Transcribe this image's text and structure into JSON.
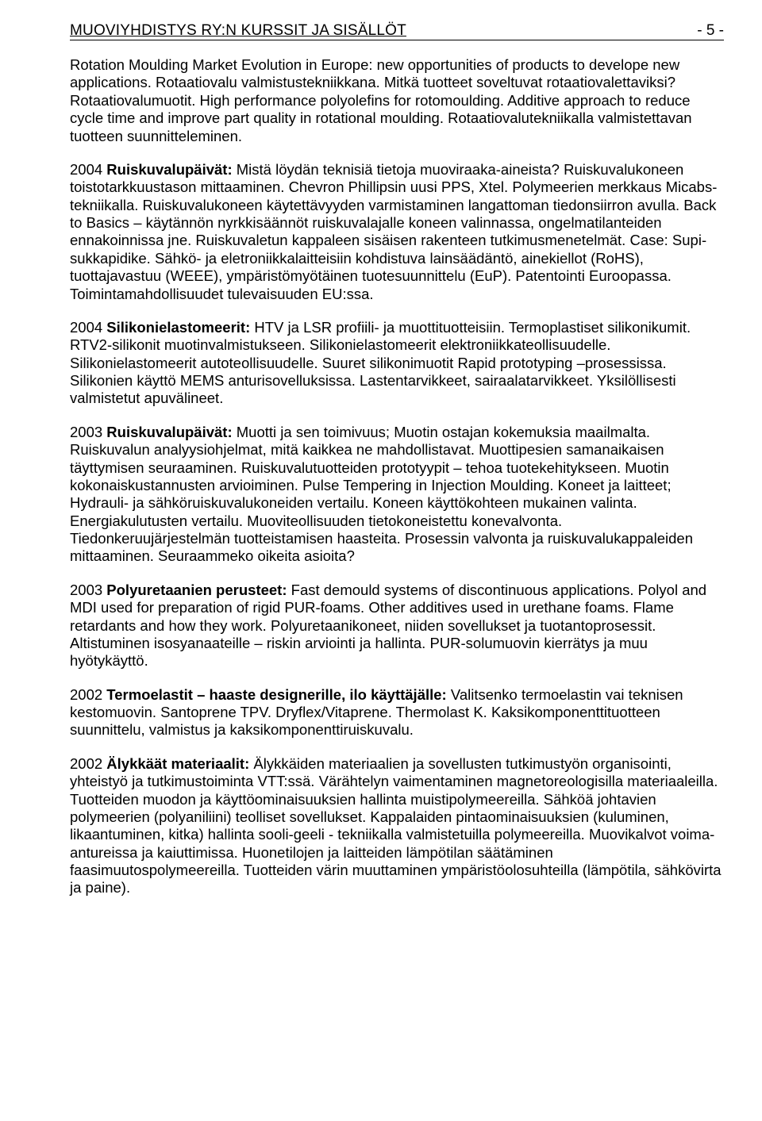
{
  "header": {
    "title": "MUOVIYHDISTYS RY:N KURSSIT JA SISÄLLÖT",
    "page_number": "- 5 -"
  },
  "paragraphs": [
    {
      "runs": [
        {
          "text": "Rotation Moulding Market Evolution in Europe: new opportunities of products to develope new applications. Rotaatiovalu valmistustekniikkana. Mitkä tuotteet soveltuvat rotaatiovalettaviksi? Rotaatiovalumuotit. High performance polyolefins for rotomoulding. Additive approach to reduce cycle time and improve part quality in rotational moulding. Rotaatiovalutekniikalla valmistettavan tuotteen suunnitteleminen.",
          "bold": false
        }
      ]
    },
    {
      "runs": [
        {
          "text": "2004 ",
          "bold": false
        },
        {
          "text": "Ruiskuvalupäivät:",
          "bold": true
        },
        {
          "text": " Mistä löydän teknisiä tietoja muoviraaka-aineista? Ruiskuvalukoneen toistotarkkuustason mittaaminen. Chevron Phillipsin uusi PPS, Xtel. Polymeerien merkkaus Micabs-tekniikalla. Ruiskuvalukoneen käytettävyyden varmistaminen langattoman tiedonsiirron avulla. Back to Basics – käytännön nyrkkisäännöt ruiskuvalajalle koneen valinnassa, ongelmatilanteiden ennakoinnissa jne. Ruiskuvaletun kappaleen sisäisen rakenteen tutkimusmenetelmät. Case: Supi-sukkapidike. Sähkö- ja eletroniikkalaitteisiin kohdistuva lainsäädäntö, ainekiellot (RoHS), tuottajavastuu (WEEE), ympäristömyötäinen tuotesuunnittelu (EuP). Patentointi Euroopassa. Toimintamahdollisuudet tulevaisuuden EU:ssa.",
          "bold": false
        }
      ]
    },
    {
      "runs": [
        {
          "text": "2004 ",
          "bold": false
        },
        {
          "text": "Silikonielastomeerit:",
          "bold": true
        },
        {
          "text": " HTV ja LSR profiili- ja muottituotteisiin. Termoplastiset silikonikumit. RTV2-silikonit muotinvalmistukseen. Silikonielastomeerit elektroniikkateollisuudelle. Silikonielastomeerit autoteollisuudelle. Suuret silikonimuotit Rapid prototyping –prosessissa. Silikonien käyttö MEMS anturisovelluksissa. Lastentarvikkeet, sairaalatarvikkeet. Yksilöllisesti valmistetut apuvälineet.",
          "bold": false
        }
      ]
    },
    {
      "runs": [
        {
          "text": "2003 ",
          "bold": false
        },
        {
          "text": "Ruiskuvalupäivät:",
          "bold": true
        },
        {
          "text": " Muotti ja sen toimivuus; Muotin ostajan kokemuksia maailmalta. Ruiskuvalun analyysiohjelmat, mitä kaikkea ne mahdollistavat. Muottipesien samanaikaisen täyttymisen seuraaminen. Ruiskuvalutuotteiden prototyypit – tehoa tuotekehitykseen. Muotin kokonaiskustannusten arvioiminen. Pulse Tempering in Injection Moulding. Koneet ja laitteet; Hydrauli- ja sähköruiskuvalukoneiden vertailu. Koneen käyttökohteen mukainen valinta. Energiakulutusten vertailu. Muoviteollisuuden tietokoneistettu konevalvonta. Tiedonkeruujärjestelmän tuotteistamisen haasteita. Prosessin valvonta ja ruiskuvalukappaleiden mittaaminen. Seuraammeko oikeita asioita?",
          "bold": false
        }
      ]
    },
    {
      "runs": [
        {
          "text": "2003 ",
          "bold": false
        },
        {
          "text": "Polyuretaanien perusteet:",
          "bold": true
        },
        {
          "text": " Fast demould systems of discontinuous applications. Polyol and MDI used for preparation of rigid PUR-foams. Other additives used in urethane foams. Flame retardants and how they work. Polyuretaanikoneet, niiden sovellukset ja tuotantoprosessit. Altistuminen isosyanaateille – riskin arviointi ja hallinta. PUR-solumuovin kierrätys ja muu hyötykäyttö.",
          "bold": false
        }
      ]
    },
    {
      "runs": [
        {
          "text": "2002 ",
          "bold": false
        },
        {
          "text": "Termoelastit – haaste designerille, ilo käyttäjälle:",
          "bold": true
        },
        {
          "text": " Valitsenko termoelastin vai teknisen kestomuovin. Santoprene TPV. Dryflex/Vitaprene. Thermolast K. Kaksikomponenttituotteen suunnittelu, valmistus ja kaksikomponenttiruiskuvalu.",
          "bold": false
        }
      ]
    },
    {
      "runs": [
        {
          "text": "2002 ",
          "bold": false
        },
        {
          "text": "Älykkäät materiaalit:",
          "bold": true
        },
        {
          "text": " Älykkäiden materiaalien ja sovellusten tutkimustyön organisointi, yhteistyö ja tutkimustoiminta VTT:ssä. Värähtelyn vaimentaminen magnetoreologisilla materiaaleilla. Tuotteiden muodon ja käyttöominaisuuksien hallinta muistipolymeereilla. Sähköä johtavien polymeerien (polyaniliini) teolliset sovellukset. Kappalaiden pintaominaisuuksien (kuluminen, likaantuminen, kitka) hallinta sooli-geeli - tekniikalla valmistetuilla polymeereilla. Muovikalvot voima-antureissa ja kaiuttimissa. Huonetilojen ja laitteiden lämpötilan säätäminen faasimuutospolymeereilla. Tuotteiden värin muuttaminen ympäristöolosuhteilla (lämpötila, sähkövirta ja paine).",
          "bold": false
        }
      ]
    }
  ]
}
